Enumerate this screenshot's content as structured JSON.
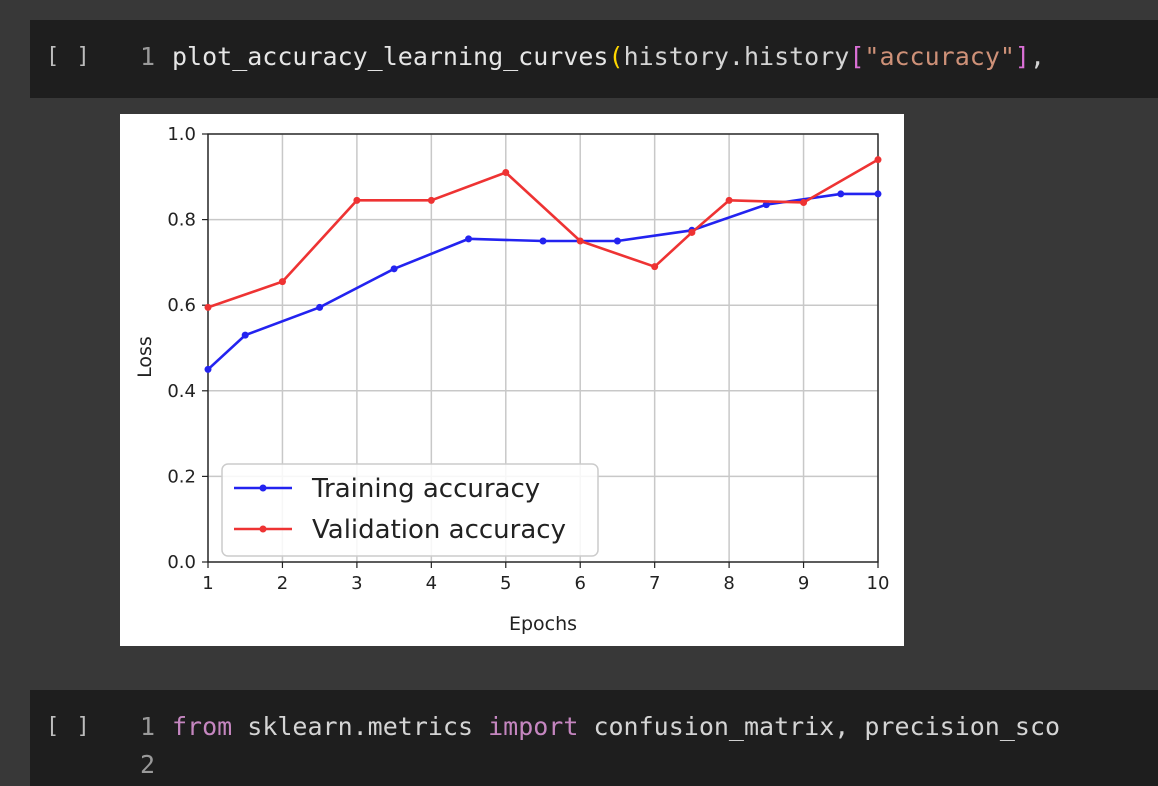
{
  "cell1": {
    "run_indicator": "[ ]",
    "line_number": "1",
    "code": {
      "fn": "plot_accuracy_learning_curves",
      "open_paren": "(",
      "arg": "history.history",
      "open_bracket": "[",
      "key": "\"accuracy\"",
      "close_bracket": "]",
      "tail": ","
    }
  },
  "cell2": {
    "run_indicator": "[ ]",
    "line1_number": "1",
    "line1": {
      "kw_from": "from",
      "module": " sklearn.metrics ",
      "kw_import": "import",
      "names": " confusion_matrix, precision_sco"
    },
    "line2_number": "2"
  },
  "chart_data": {
    "type": "line",
    "xlabel": "Epochs",
    "ylabel": "Loss",
    "xlim": [
      1,
      10
    ],
    "ylim": [
      0.0,
      1.0
    ],
    "xticks": [
      "1",
      "2",
      "3",
      "4",
      "5",
      "6",
      "7",
      "8",
      "9",
      "10"
    ],
    "yticks": [
      "0.0",
      "0.2",
      "0.4",
      "0.6",
      "0.8",
      "1.0"
    ],
    "grid": true,
    "legend_position": "lower-left",
    "series": [
      {
        "name": "Training accuracy",
        "color": "#2323f0",
        "x": [
          1,
          1.5,
          2.5,
          3.5,
          4.5,
          5.5,
          6.5,
          7.5,
          8.5,
          9.5,
          10
        ],
        "y": [
          0.45,
          0.53,
          0.595,
          0.685,
          0.755,
          0.75,
          0.75,
          0.775,
          0.835,
          0.86,
          0.86
        ]
      },
      {
        "name": "Validation accuracy",
        "color": "#ee3333",
        "x": [
          1,
          2,
          3,
          4,
          5,
          6,
          7,
          7.5,
          8,
          9,
          10
        ],
        "y": [
          0.595,
          0.655,
          0.845,
          0.845,
          0.91,
          0.75,
          0.69,
          0.77,
          0.845,
          0.84,
          0.94
        ]
      }
    ]
  }
}
